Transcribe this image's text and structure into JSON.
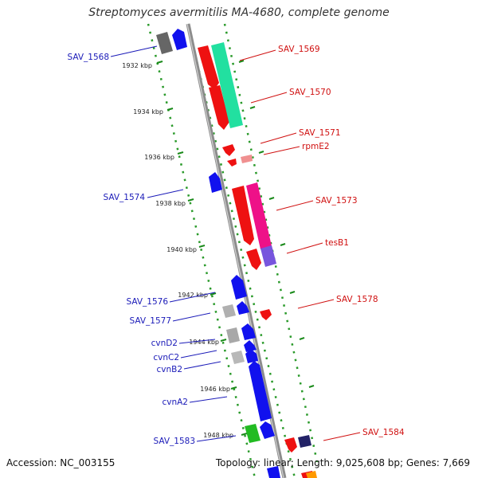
{
  "header": {
    "title": "Streptomyces avermitilis MA-4680, complete genome"
  },
  "footer": {
    "accession": "Accession: NC_003155",
    "info": "Topology: linear; Length: 9,025,608 bp; Genes: 7,669"
  },
  "colors": {
    "forward_gene": "#ee1111",
    "reverse_gene": "#1111ee",
    "label_forward": "#d01010",
    "label_reverse": "#1a1ab8",
    "backbone": "#8c8c8c",
    "track_dots": "#2a9a2a"
  },
  "scale": {
    "unit": "kbp",
    "ticks": [
      {
        "kbp": 1932,
        "label": "1932 kbp"
      },
      {
        "kbp": 1934,
        "label": "1934 kbp"
      },
      {
        "kbp": 1936,
        "label": "1936 kbp"
      },
      {
        "kbp": 1938,
        "label": "1938 kbp"
      },
      {
        "kbp": 1940,
        "label": "1940 kbp"
      },
      {
        "kbp": 1942,
        "label": "1942 kbp"
      },
      {
        "kbp": 1944,
        "label": "1944 kbp"
      },
      {
        "kbp": 1946,
        "label": "1946 kbp"
      },
      {
        "kbp": 1948,
        "label": "1948 kbp"
      }
    ]
  },
  "labels_reverse": [
    "SAV_1568",
    "SAV_1574",
    "SAV_1576",
    "SAV_1577",
    "cvnD2",
    "cvnC2",
    "cvnB2",
    "cvnA2",
    "SAV_1583"
  ],
  "labels_forward": [
    "SAV_1569",
    "SAV_1570",
    "SAV_1571",
    "rpmE2",
    "SAV_1573",
    "tesB1",
    "SAV_1578",
    "SAV_1584"
  ]
}
